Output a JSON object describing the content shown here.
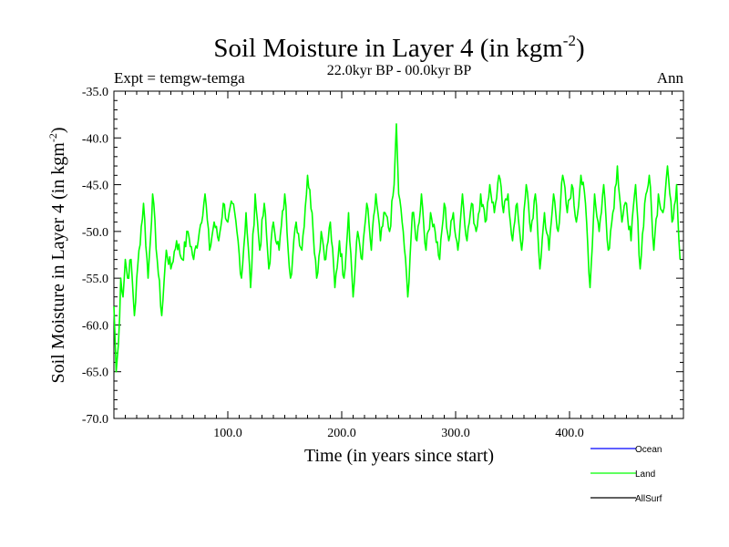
{
  "chart_data": {
    "type": "line",
    "title": "Soil Moisture in Layer 4 (in kgm",
    "title_superscript": "-2",
    "title_close": ")",
    "subtitle_left": "Expt = temgw-temga",
    "subtitle_center": "22.0kyr BP - 00.0kyr BP",
    "subtitle_right": "Ann",
    "xlabel": "Time (in years since start)",
    "ylabel": "Soil Moisture in Layer 4 (in kgm",
    "ylabel_superscript": "-2",
    "ylabel_close": ")",
    "xlim": [
      0,
      500
    ],
    "ylim": [
      -70,
      -35
    ],
    "xticks": [
      100,
      200,
      300,
      400
    ],
    "xtick_labels": [
      "100.0",
      "200.0",
      "300.0",
      "400.0"
    ],
    "yticks": [
      -35,
      -40,
      -45,
      -50,
      -55,
      -60,
      -65,
      -70
    ],
    "ytick_labels": [
      "-35.0",
      "-40.0",
      "-45.0",
      "-50.0",
      "-55.0",
      "-60.0",
      "-65.0",
      "-70.0"
    ],
    "grid": false,
    "legend": [
      {
        "name": "Ocean",
        "color": "#0000ff"
      },
      {
        "name": "Land",
        "color": "#00ff00"
      },
      {
        "name": "AllSurf",
        "color": "#000000"
      }
    ],
    "series": [
      {
        "name": "Land",
        "color": "#00ff00",
        "x": [
          0,
          2,
          4,
          6,
          8,
          10,
          12,
          15,
          18,
          22,
          26,
          30,
          34,
          38,
          42,
          46,
          50,
          55,
          60,
          65,
          70,
          75,
          80,
          84,
          88,
          92,
          96,
          100,
          104,
          108,
          112,
          116,
          120,
          124,
          128,
          132,
          136,
          140,
          145,
          150,
          155,
          160,
          165,
          170,
          174,
          178,
          182,
          186,
          190,
          194,
          198,
          202,
          206,
          210,
          214,
          218,
          222,
          226,
          230,
          234,
          238,
          242,
          246,
          248,
          250,
          254,
          258,
          262,
          266,
          270,
          274,
          278,
          282,
          286,
          290,
          294,
          298,
          302,
          306,
          310,
          314,
          318,
          322,
          326,
          330,
          334,
          338,
          342,
          346,
          350,
          354,
          358,
          362,
          366,
          370,
          374,
          378,
          382,
          386,
          390,
          394,
          398,
          402,
          406,
          410,
          414,
          418,
          422,
          426,
          430,
          434,
          438,
          442,
          446,
          450,
          454,
          458,
          462,
          466,
          470,
          474,
          478,
          482,
          486,
          490,
          494,
          497
        ],
        "y": [
          -58,
          -65,
          -62,
          -55,
          -57,
          -53,
          -55,
          -53,
          -59,
          -52,
          -47,
          -55,
          -46,
          -53,
          -59,
          -52,
          -54,
          -51,
          -53,
          -50,
          -53,
          -50,
          -46,
          -52,
          -49,
          -51,
          -47,
          -49,
          -47,
          -50,
          -55,
          -48,
          -56,
          -46,
          -52,
          -47,
          -54,
          -49,
          -52,
          -46,
          -55,
          -49,
          -52,
          -44,
          -48,
          -55,
          -50,
          -53,
          -49,
          -56,
          -51,
          -55,
          -48,
          -57,
          -50,
          -53,
          -47,
          -52,
          -46,
          -51,
          -48,
          -50,
          -45,
          -38.5,
          -46,
          -50,
          -57,
          -48,
          -51,
          -46,
          -52,
          -48,
          -50,
          -53,
          -47,
          -51,
          -48,
          -52,
          -46,
          -51,
          -47,
          -50,
          -46,
          -49,
          -45,
          -48,
          -44,
          -48,
          -46,
          -51,
          -47,
          -52,
          -45,
          -50,
          -46,
          -54,
          -48,
          -52,
          -46,
          -50,
          -44,
          -48,
          -45,
          -49,
          -44,
          -47,
          -56,
          -46,
          -50,
          -45,
          -52,
          -48,
          -43,
          -49,
          -47,
          -51,
          -45,
          -54,
          -47,
          -44,
          -52,
          -46,
          -48,
          -43,
          -49,
          -45,
          -53
        ]
      }
    ]
  }
}
